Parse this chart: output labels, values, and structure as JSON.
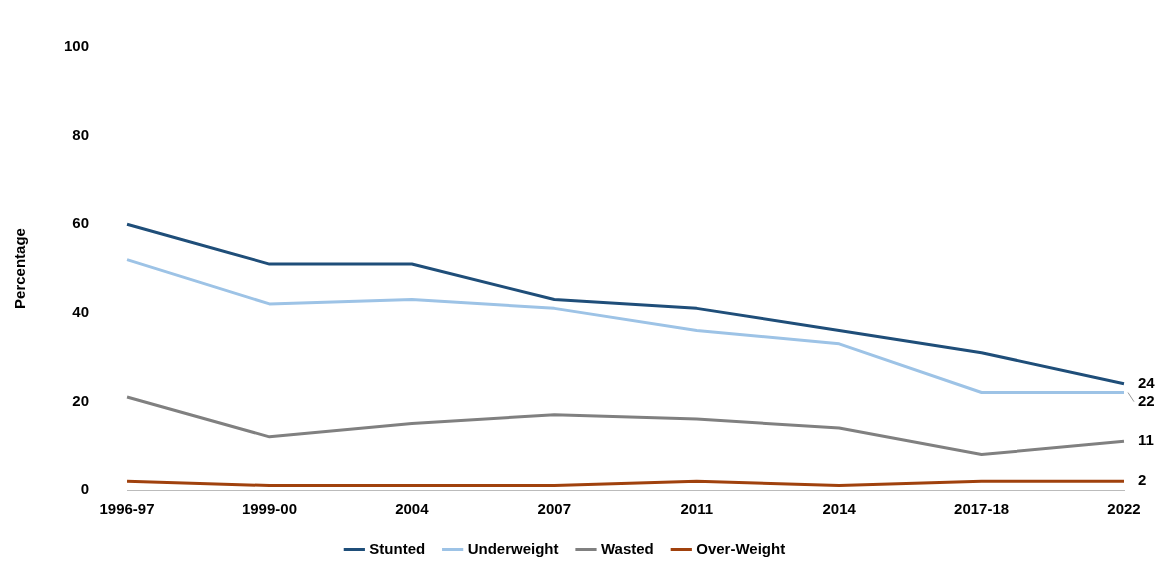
{
  "chart_data": {
    "type": "line",
    "ylabel": "Percentage",
    "categories": [
      "1996-97",
      "1999-00",
      "2004",
      "2007",
      "2011",
      "2014",
      "2017-18",
      "2022"
    ],
    "ylim": [
      0,
      100
    ],
    "yticks": [
      0,
      20,
      40,
      60,
      80,
      100
    ],
    "grid": false,
    "legend": "bottom",
    "series": [
      {
        "name": "Stunted",
        "color": "#1f4e79",
        "values": [
          60,
          51,
          51,
          43,
          41,
          36,
          31,
          24
        ],
        "value_labels": [
          null,
          null,
          null,
          null,
          null,
          null,
          null,
          "24"
        ]
      },
      {
        "name": "Underweight",
        "color": "#9dc3e6",
        "values": [
          52,
          42,
          43,
          41,
          36,
          33,
          22,
          22
        ],
        "value_labels": [
          null,
          null,
          null,
          null,
          null,
          null,
          null,
          "22"
        ]
      },
      {
        "name": "Wasted",
        "color": "#808080",
        "values": [
          21,
          12,
          15,
          17,
          16,
          14,
          8,
          11
        ],
        "value_labels": [
          null,
          null,
          null,
          null,
          null,
          null,
          null,
          "11"
        ]
      },
      {
        "name": "Over-Weight",
        "color": "#a0410d",
        "values": [
          2,
          1,
          1,
          1,
          2,
          1,
          2,
          2
        ],
        "value_labels": [
          null,
          null,
          null,
          null,
          null,
          null,
          null,
          "2"
        ]
      }
    ]
  }
}
